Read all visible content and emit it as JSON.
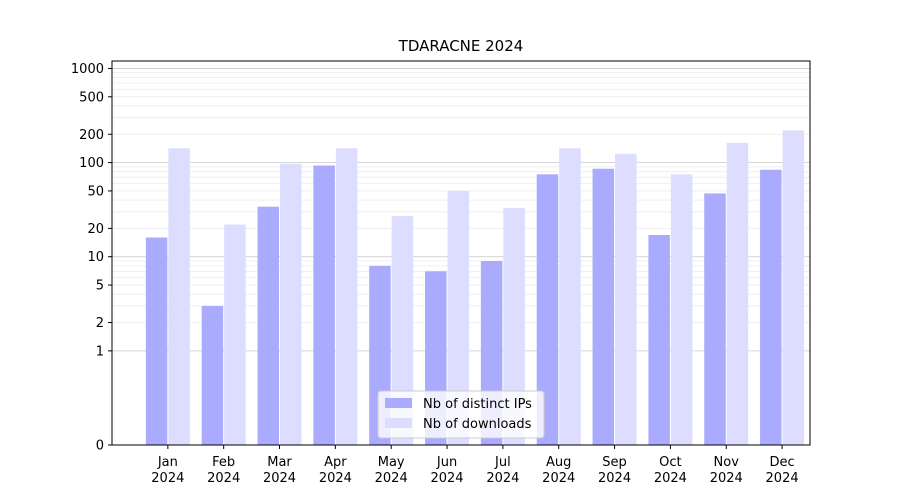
{
  "chart_data": {
    "type": "bar",
    "title": "TDARACNE 2024",
    "xlabel": "",
    "ylabel": "",
    "yscale": "symlog",
    "ylim": [
      0,
      1200
    ],
    "yticks": [
      0,
      1,
      2,
      5,
      10,
      20,
      50,
      100,
      200,
      500,
      1000
    ],
    "ytick_labels": [
      "0",
      "1",
      "2",
      "5",
      "10",
      "20",
      "50",
      "100",
      "200",
      "500",
      "1000"
    ],
    "grid": true,
    "legend_position": "bottom-center",
    "categories": [
      "Jan\n2024",
      "Feb\n2024",
      "Mar\n2024",
      "Apr\n2024",
      "May\n2024",
      "Jun\n2024",
      "Jul\n2024",
      "Aug\n2024",
      "Sep\n2024",
      "Oct\n2024",
      "Nov\n2024",
      "Dec\n2024"
    ],
    "series": [
      {
        "name": "Nb of distinct IPs",
        "color": "#aaaaff",
        "values": [
          16,
          3,
          34,
          93,
          8,
          7,
          9,
          75,
          86,
          17,
          47,
          84
        ]
      },
      {
        "name": "Nb of downloads",
        "color": "#ddddff",
        "values": [
          142,
          22,
          97,
          142,
          27,
          50,
          33,
          142,
          124,
          75,
          162,
          220
        ]
      }
    ]
  }
}
